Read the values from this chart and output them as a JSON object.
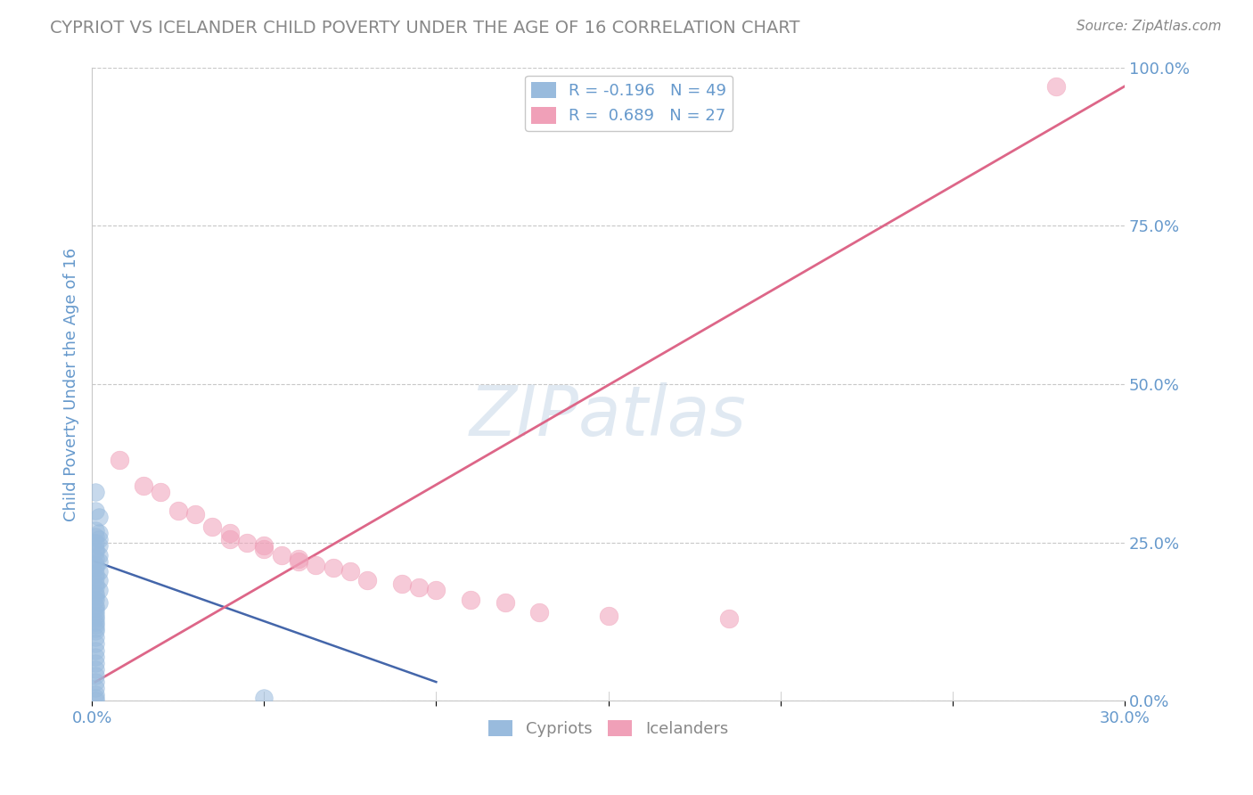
{
  "title": "CYPRIOT VS ICELANDER CHILD POVERTY UNDER THE AGE OF 16 CORRELATION CHART",
  "source": "Source: ZipAtlas.com",
  "ylabel": "Child Poverty Under the Age of 16",
  "xlim": [
    0.0,
    0.3
  ],
  "ylim": [
    0.0,
    1.0
  ],
  "ytick_values": [
    0.0,
    0.25,
    0.5,
    0.75,
    1.0
  ],
  "ytick_labels": [
    "0.0%",
    "25.0%",
    "50.0%",
    "75.0%",
    "100.0%"
  ],
  "xtick_values": [
    0.0,
    0.05,
    0.1,
    0.15,
    0.2,
    0.25,
    0.3
  ],
  "xtick_show": [
    0.0,
    0.3
  ],
  "xtick_labels_show": [
    "0.0%",
    "30.0%"
  ],
  "grid_color": "#c8c8c8",
  "background_color": "#ffffff",
  "cypriot_color": "#99bbdd",
  "icelander_color": "#f0a0b8",
  "cypriot_R": -0.196,
  "cypriot_N": 49,
  "icelander_R": 0.689,
  "icelander_N": 27,
  "title_color": "#888888",
  "axis_label_color": "#6699cc",
  "cypriot_line_color": "#4466aa",
  "icelander_line_color": "#dd6688",
  "cypriot_points": [
    [
      0.001,
      0.33
    ],
    [
      0.001,
      0.3
    ],
    [
      0.002,
      0.29
    ],
    [
      0.001,
      0.27
    ],
    [
      0.002,
      0.265
    ],
    [
      0.001,
      0.26
    ],
    [
      0.002,
      0.255
    ],
    [
      0.001,
      0.25
    ],
    [
      0.002,
      0.245
    ],
    [
      0.001,
      0.24
    ],
    [
      0.001,
      0.235
    ],
    [
      0.002,
      0.23
    ],
    [
      0.001,
      0.225
    ],
    [
      0.002,
      0.22
    ],
    [
      0.001,
      0.215
    ],
    [
      0.001,
      0.21
    ],
    [
      0.002,
      0.205
    ],
    [
      0.001,
      0.2
    ],
    [
      0.001,
      0.195
    ],
    [
      0.002,
      0.19
    ],
    [
      0.001,
      0.185
    ],
    [
      0.001,
      0.18
    ],
    [
      0.002,
      0.175
    ],
    [
      0.001,
      0.17
    ],
    [
      0.001,
      0.165
    ],
    [
      0.001,
      0.16
    ],
    [
      0.002,
      0.155
    ],
    [
      0.001,
      0.15
    ],
    [
      0.001,
      0.145
    ],
    [
      0.001,
      0.14
    ],
    [
      0.001,
      0.135
    ],
    [
      0.001,
      0.13
    ],
    [
      0.001,
      0.125
    ],
    [
      0.001,
      0.12
    ],
    [
      0.001,
      0.115
    ],
    [
      0.001,
      0.11
    ],
    [
      0.001,
      0.1
    ],
    [
      0.001,
      0.09
    ],
    [
      0.001,
      0.08
    ],
    [
      0.001,
      0.07
    ],
    [
      0.001,
      0.06
    ],
    [
      0.001,
      0.05
    ],
    [
      0.001,
      0.04
    ],
    [
      0.001,
      0.03
    ],
    [
      0.001,
      0.02
    ],
    [
      0.001,
      0.01
    ],
    [
      0.001,
      0.005
    ],
    [
      0.001,
      0.0
    ],
    [
      0.05,
      0.005
    ]
  ],
  "icelander_points": [
    [
      0.008,
      0.38
    ],
    [
      0.015,
      0.34
    ],
    [
      0.02,
      0.33
    ],
    [
      0.025,
      0.3
    ],
    [
      0.03,
      0.295
    ],
    [
      0.035,
      0.275
    ],
    [
      0.04,
      0.265
    ],
    [
      0.04,
      0.255
    ],
    [
      0.045,
      0.25
    ],
    [
      0.05,
      0.245
    ],
    [
      0.05,
      0.24
    ],
    [
      0.055,
      0.23
    ],
    [
      0.06,
      0.225
    ],
    [
      0.06,
      0.22
    ],
    [
      0.065,
      0.215
    ],
    [
      0.07,
      0.21
    ],
    [
      0.075,
      0.205
    ],
    [
      0.08,
      0.19
    ],
    [
      0.09,
      0.185
    ],
    [
      0.095,
      0.18
    ],
    [
      0.1,
      0.175
    ],
    [
      0.11,
      0.16
    ],
    [
      0.12,
      0.155
    ],
    [
      0.13,
      0.14
    ],
    [
      0.15,
      0.135
    ],
    [
      0.185,
      0.13
    ],
    [
      0.28,
      0.97
    ]
  ],
  "cypriot_line": [
    [
      0.001,
      0.22
    ],
    [
      0.1,
      0.03
    ]
  ],
  "icelander_line": [
    [
      0.001,
      0.03
    ],
    [
      0.3,
      0.97
    ]
  ]
}
